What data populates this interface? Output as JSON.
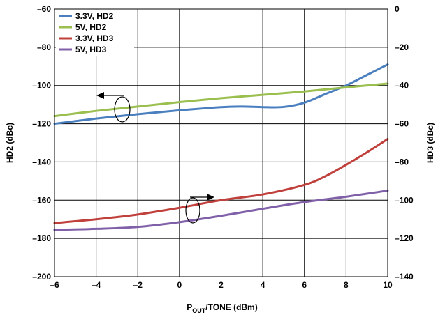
{
  "chart_data": {
    "type": "line",
    "xlabel_main": "P",
    "xlabel_sub": "OUT",
    "xlabel_rest": "/TONE (dBm)",
    "ylabel_left": "HD2 (dBc)",
    "ylabel_right": "HD3 (dBc)",
    "xlim": [
      -6,
      10
    ],
    "ylim_left": [
      -200,
      -60
    ],
    "ylim_right": [
      -140,
      0
    ],
    "grid": true,
    "legend_position": "top-left",
    "x_ticks": [
      "–6",
      "–4",
      "–2",
      "0",
      "2",
      "4",
      "6",
      "8",
      "10"
    ],
    "y_left_ticks": [
      "–60",
      "–80",
      "–100",
      "–120",
      "–140",
      "–160",
      "–180",
      "–200"
    ],
    "y_right_ticks": [
      "0",
      "–20",
      "–40",
      "–60",
      "–80",
      "–100",
      "–120",
      "–140"
    ],
    "series": [
      {
        "name": "3.3V, HD2",
        "axis": "left",
        "color": "#4a7fbf",
        "x": [
          -6,
          -4,
          -2,
          0,
          2,
          3,
          4,
          5,
          6,
          7,
          8,
          9,
          10
        ],
        "y": [
          -120,
          -117.3,
          -115,
          -113,
          -111.3,
          -111,
          -111.3,
          -111.2,
          -109,
          -104.5,
          -100,
          -94.5,
          -89
        ]
      },
      {
        "name": "5V, HD2",
        "axis": "left",
        "color": "#9bbf4f",
        "x": [
          -6,
          -4,
          -2,
          0,
          2,
          4,
          6,
          8,
          10
        ],
        "y": [
          -116,
          -113.3,
          -111,
          -108.7,
          -106.6,
          -104.9,
          -103.1,
          -101,
          -99
        ]
      },
      {
        "name": "3.3V, HD3",
        "axis": "right",
        "color": "#c0403c",
        "x": [
          -6,
          -4,
          -2,
          0,
          2,
          4,
          6,
          7,
          8,
          9,
          10
        ],
        "y": [
          -112,
          -110,
          -107.5,
          -104,
          -100,
          -97,
          -92,
          -87.5,
          -81.5,
          -75,
          -68
        ]
      },
      {
        "name": "5V, HD3",
        "axis": "right",
        "color": "#8060a8",
        "x": [
          -6,
          -4,
          -2,
          0,
          2,
          4,
          6,
          8,
          10
        ],
        "y": [
          -115.5,
          -115,
          -114,
          -111.5,
          -108.2,
          -104.5,
          -101,
          -98.2,
          -95
        ]
      }
    ]
  }
}
